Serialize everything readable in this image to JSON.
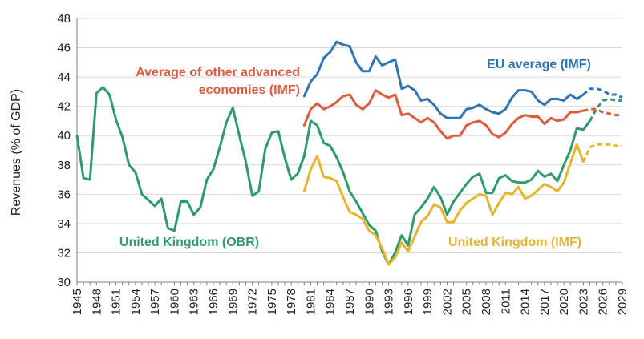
{
  "chart_data": {
    "type": "line",
    "title": "",
    "xlabel": "",
    "ylabel": "Revenues (% of GDP)",
    "xlim": [
      1945,
      2029
    ],
    "ylim": [
      30,
      48
    ],
    "yticks": [
      30,
      32,
      34,
      36,
      38,
      40,
      42,
      44,
      46,
      48
    ],
    "xticks": [
      1945,
      1948,
      1951,
      1954,
      1957,
      1960,
      1963,
      1966,
      1969,
      1972,
      1975,
      1978,
      1981,
      1984,
      1987,
      1990,
      1993,
      1996,
      1999,
      2002,
      2005,
      2008,
      2011,
      2014,
      2017,
      2020,
      2023,
      2026,
      2029
    ],
    "grid": "horizontal",
    "series": [
      {
        "name": "United Kingdom (OBR)",
        "label_lines": [
          "United Kingdom (OBR)"
        ],
        "color": "#2e9c6a",
        "x": [
          1945,
          1946,
          1947,
          1948,
          1949,
          1950,
          1951,
          1952,
          1953,
          1954,
          1955,
          1956,
          1957,
          1958,
          1959,
          1960,
          1961,
          1962,
          1963,
          1964,
          1965,
          1966,
          1967,
          1968,
          1969,
          1970,
          1971,
          1972,
          1973,
          1974,
          1975,
          1976,
          1977,
          1978,
          1979,
          1980,
          1981,
          1982,
          1983,
          1984,
          1985,
          1986,
          1987,
          1988,
          1989,
          1990,
          1991,
          1992,
          1993,
          1994,
          1995,
          1996,
          1997,
          1998,
          1999,
          2000,
          2001,
          2002,
          2003,
          2004,
          2005,
          2006,
          2007,
          2008,
          2009,
          2010,
          2011,
          2012,
          2013,
          2014,
          2015,
          2016,
          2017,
          2018,
          2019,
          2020,
          2021,
          2022,
          2023,
          2024
        ],
        "values": [
          40.0,
          37.1,
          37.0,
          42.9,
          43.3,
          42.8,
          41.1,
          39.9,
          38.0,
          37.5,
          36.0,
          35.6,
          35.2,
          35.7,
          33.7,
          33.5,
          35.5,
          35.5,
          34.6,
          35.1,
          37.0,
          37.7,
          39.2,
          40.9,
          41.9,
          40.0,
          38.2,
          35.9,
          36.2,
          39.1,
          40.2,
          40.3,
          38.5,
          37.0,
          37.4,
          38.6,
          41.0,
          40.7,
          39.5,
          39.3,
          38.5,
          37.5,
          36.2,
          35.5,
          34.7,
          33.9,
          33.5,
          32.1,
          31.2,
          32.0,
          33.2,
          32.5,
          34.6,
          35.1,
          35.7,
          36.5,
          35.8,
          34.6,
          35.5,
          36.1,
          36.7,
          37.2,
          37.4,
          36.1,
          36.1,
          37.1,
          37.3,
          36.9,
          36.8,
          36.8,
          37.0,
          37.6,
          37.2,
          37.4,
          36.9,
          38.0,
          39.0,
          40.5,
          40.4,
          41.0
        ]
      },
      {
        "name": "United Kingdom (OBR) forecast",
        "color": "#2e9c6a",
        "dashed": true,
        "x": [
          2024,
          2025,
          2026,
          2027,
          2028,
          2029
        ],
        "values": [
          41.0,
          41.8,
          42.4,
          42.5,
          42.4,
          42.4
        ]
      },
      {
        "name": "United Kingdom (IMF)",
        "label_lines": [
          "United Kingdom (IMF)"
        ],
        "color": "#e8b32d",
        "x": [
          1980,
          1981,
          1982,
          1983,
          1984,
          1985,
          1986,
          1987,
          1988,
          1989,
          1990,
          1991,
          1992,
          1993,
          1994,
          1995,
          1996,
          1997,
          1998,
          1999,
          2000,
          2001,
          2002,
          2003,
          2004,
          2005,
          2006,
          2007,
          2008,
          2009,
          2010,
          2011,
          2012,
          2013,
          2014,
          2015,
          2016,
          2017,
          2018,
          2019,
          2020,
          2021,
          2022,
          2023
        ],
        "values": [
          36.2,
          37.7,
          38.6,
          37.2,
          37.1,
          36.9,
          35.8,
          34.8,
          34.6,
          34.3,
          33.5,
          33.2,
          32.3,
          31.2,
          31.7,
          32.7,
          32.1,
          33.1,
          34.1,
          34.5,
          35.3,
          35.1,
          34.1,
          34.1,
          34.9,
          35.4,
          35.7,
          36.0,
          35.9,
          34.6,
          35.4,
          36.1,
          36.0,
          36.5,
          35.7,
          35.9,
          36.3,
          36.7,
          36.5,
          36.2,
          36.8,
          38.1,
          39.4,
          38.2
        ]
      },
      {
        "name": "United Kingdom (IMF) forecast",
        "color": "#e8b32d",
        "dashed": true,
        "x": [
          2023,
          2024,
          2025,
          2026,
          2027,
          2028,
          2029
        ],
        "values": [
          38.2,
          39.2,
          39.4,
          39.4,
          39.4,
          39.3,
          39.3
        ]
      },
      {
        "name": "EU average (IMF)",
        "label_lines": [
          "EU average (IMF)"
        ],
        "color": "#2f75b5",
        "x": [
          1980,
          1981,
          1982,
          1983,
          1984,
          1985,
          1986,
          1987,
          1988,
          1989,
          1990,
          1991,
          1992,
          1993,
          1994,
          1995,
          1996,
          1997,
          1998,
          1999,
          2000,
          2001,
          2002,
          2003,
          2004,
          2005,
          2006,
          2007,
          2008,
          2009,
          2010,
          2011,
          2012,
          2013,
          2014,
          2015,
          2016,
          2017,
          2018,
          2019,
          2020,
          2021,
          2022,
          2023
        ],
        "values": [
          42.7,
          43.7,
          44.2,
          45.3,
          45.7,
          46.4,
          46.2,
          46.1,
          45.0,
          44.4,
          44.4,
          45.4,
          44.8,
          45.0,
          45.2,
          43.2,
          43.4,
          43.1,
          42.4,
          42.5,
          42.1,
          41.5,
          41.2,
          41.2,
          41.2,
          41.8,
          41.9,
          42.1,
          41.8,
          41.6,
          41.5,
          41.8,
          42.6,
          43.1,
          43.1,
          43.0,
          42.4,
          42.1,
          42.5,
          42.5,
          42.4,
          42.8,
          42.5,
          42.8
        ]
      },
      {
        "name": "EU average (IMF) forecast",
        "color": "#2f75b5",
        "dashed": true,
        "x": [
          2023,
          2024,
          2025,
          2026,
          2027,
          2028,
          2029
        ],
        "values": [
          42.8,
          43.2,
          43.2,
          43.1,
          42.8,
          42.8,
          42.6
        ]
      },
      {
        "name": "Average of other advanced economies (IMF)",
        "label_lines": [
          "Average of other advanced",
          "economies (IMF)"
        ],
        "color": "#e05a3c",
        "x": [
          1980,
          1981,
          1982,
          1983,
          1984,
          1985,
          1986,
          1987,
          1988,
          1989,
          1990,
          1991,
          1992,
          1993,
          1994,
          1995,
          1996,
          1997,
          1998,
          1999,
          2000,
          2001,
          2002,
          2003,
          2004,
          2005,
          2006,
          2007,
          2008,
          2009,
          2010,
          2011,
          2012,
          2013,
          2014,
          2015,
          2016,
          2017,
          2018,
          2019,
          2020,
          2021,
          2022,
          2023
        ],
        "values": [
          40.7,
          41.8,
          42.2,
          41.8,
          42.0,
          42.3,
          42.7,
          42.8,
          42.1,
          41.8,
          42.2,
          43.1,
          42.8,
          42.6,
          42.8,
          41.4,
          41.5,
          41.2,
          40.9,
          41.2,
          40.9,
          40.3,
          39.8,
          40.0,
          40.0,
          40.7,
          40.9,
          41.0,
          40.7,
          40.1,
          39.9,
          40.2,
          40.8,
          41.2,
          41.4,
          41.3,
          41.3,
          40.8,
          41.2,
          41.0,
          41.1,
          41.6,
          41.6,
          41.7
        ]
      },
      {
        "name": "Average of other advanced economies (IMF) forecast",
        "color": "#e05a3c",
        "dashed": true,
        "x": [
          2023,
          2024,
          2025,
          2026,
          2027,
          2028,
          2029
        ],
        "values": [
          41.7,
          41.8,
          41.8,
          41.6,
          41.5,
          41.4,
          41.4
        ]
      }
    ]
  }
}
